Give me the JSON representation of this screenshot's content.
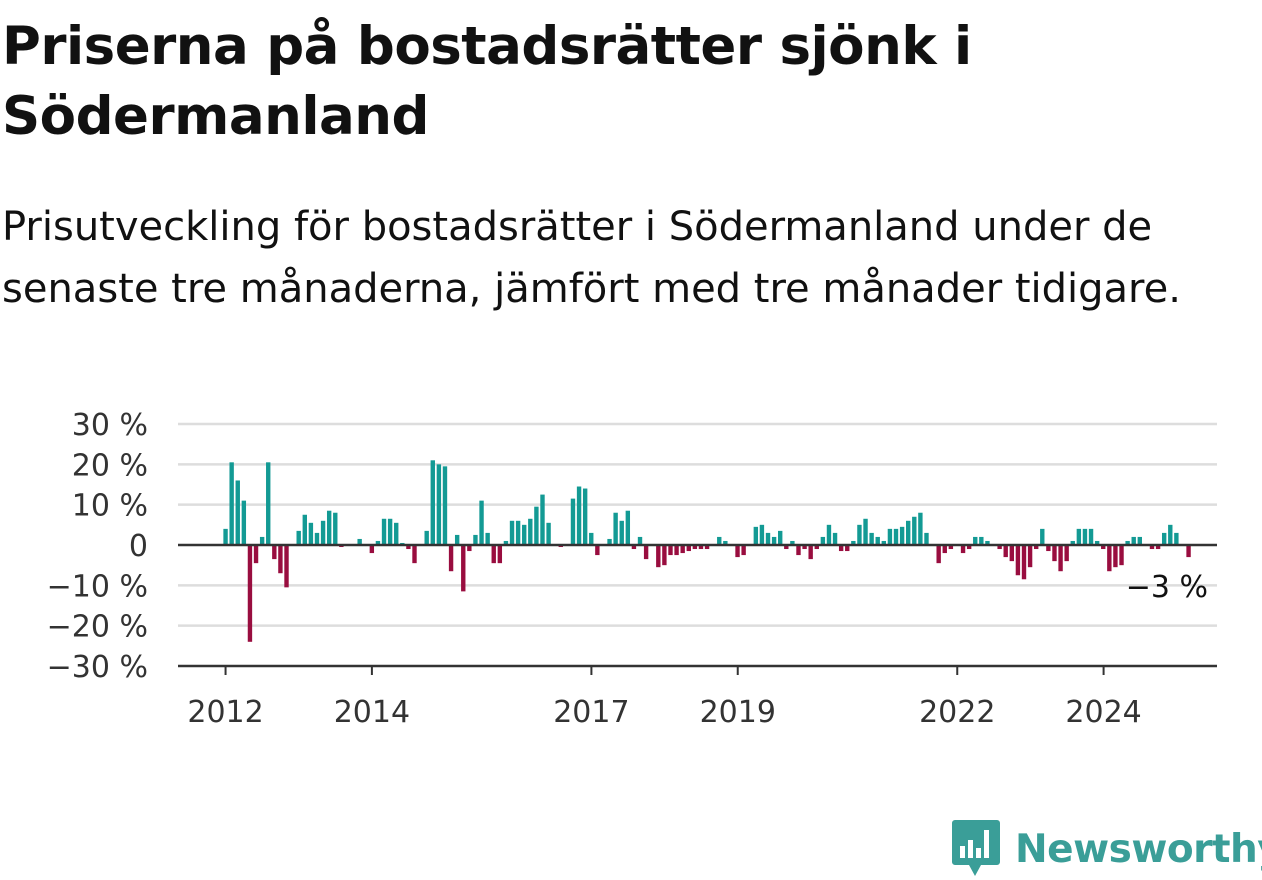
{
  "title": "Priserna på bostadsrätter sjönk i Södermanland",
  "subtitle": "Prisutveckling för bostadsrätter i Södermanland under de senaste tre månaderna, jämfört med tre månader tidigare.",
  "brand": {
    "name": "Newsworthy",
    "color": "#3a9e98",
    "icon": "newsworthy-bar-chart-speech-bubble-icon"
  },
  "colors": {
    "positive": "#139a94",
    "negative": "#990d3f",
    "axis": "#333333",
    "grid": "#dddddd"
  },
  "chart_data": {
    "type": "bar",
    "title": "",
    "xlabel": "",
    "ylabel": "",
    "ylim": [
      -30,
      30
    ],
    "yticks": [
      30,
      20,
      10,
      0,
      -10,
      -20,
      -30
    ],
    "ytick_labels": [
      "30 %",
      "20 %",
      "10 %",
      "0",
      "−10 %",
      "−20 %",
      "−30 %"
    ],
    "xlim": [
      2011.35,
      2025.55
    ],
    "xticks": [
      2012,
      2014,
      2017,
      2019,
      2022,
      2024
    ],
    "xtick_labels": [
      "2012",
      "2014",
      "2017",
      "2019",
      "2022",
      "2024"
    ],
    "grid": true,
    "legend": "none",
    "annotation": {
      "text": "−3 %",
      "x": 2024.75,
      "y": -3
    },
    "start": 2012.0,
    "step_years": 0.0833,
    "values": [
      4,
      20.5,
      16,
      11,
      -24,
      -4.5,
      2,
      20.5,
      -3.5,
      -7,
      -10.5,
      0,
      3.5,
      7.5,
      5.5,
      3,
      6,
      8.5,
      8,
      -0.5,
      0,
      0,
      1.5,
      0,
      -2,
      1,
      6.5,
      6.5,
      5.5,
      0.5,
      -1,
      -4.5,
      0,
      3.5,
      21,
      20,
      19.5,
      -6.5,
      2.5,
      -11.5,
      -1.5,
      2.5,
      11,
      3,
      -4.5,
      -4.5,
      1,
      6,
      6,
      5,
      6.5,
      9.5,
      12.5,
      5.5,
      0,
      -0.5,
      0,
      11.5,
      14.5,
      14,
      3,
      -2.5,
      0,
      1.5,
      8,
      6,
      8.5,
      -1,
      2,
      -3.5,
      0,
      -5.5,
      -5,
      -2.5,
      -2.5,
      -2,
      -1.5,
      -1,
      -1,
      -1,
      0,
      2,
      1,
      0,
      -3,
      -2.5,
      0,
      4.5,
      5,
      3,
      2,
      3.5,
      -1,
      1,
      -2.5,
      -1,
      -3.5,
      -1,
      2,
      5,
      3,
      -1.5,
      -1.5,
      1,
      5,
      6.5,
      3,
      2,
      1,
      4,
      4,
      4.5,
      6,
      7,
      8,
      3,
      0,
      -4.5,
      -2,
      -1,
      0,
      -2,
      -1,
      2,
      2,
      1,
      0,
      -1,
      -3,
      -4,
      -7.5,
      -8.5,
      -5.5,
      -1,
      4,
      -1.5,
      -4,
      -6.5,
      -4,
      1,
      4,
      4,
      4,
      1,
      -1,
      -6.5,
      -5.5,
      -5,
      1,
      2,
      2,
      0,
      -1,
      -1,
      3,
      5,
      3,
      0,
      -3
    ]
  }
}
